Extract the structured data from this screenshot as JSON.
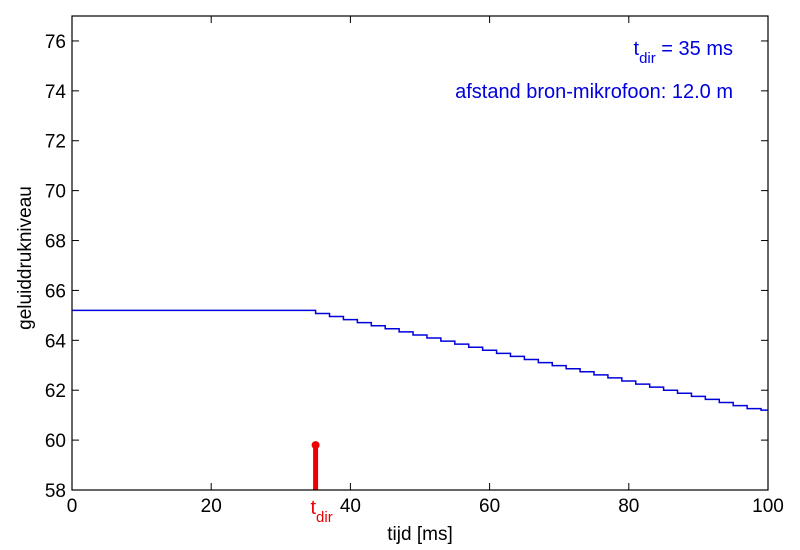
{
  "chart_data": {
    "type": "line",
    "xlabel": "tijd  [ms]",
    "ylabel": "geluiddrukniveau",
    "xlim": [
      0,
      100
    ],
    "ylim": [
      58,
      77
    ],
    "x_ticks": [
      0,
      20,
      40,
      60,
      80,
      100
    ],
    "y_ticks": [
      58,
      60,
      62,
      64,
      66,
      68,
      70,
      72,
      74,
      76
    ],
    "grid": false,
    "colors": {
      "curve": "#0000dd",
      "marker": "#ee0000",
      "annotation": "#0000dd"
    },
    "series": [
      {
        "initial_level": 65.2,
        "step_start_ms": 35,
        "end_level": 61.2,
        "step_ms": 2,
        "x": [
          0,
          35,
          100
        ],
        "y": [
          65.2,
          65.2,
          61.2
        ]
      }
    ],
    "marker": {
      "x": 35,
      "y_top": 59.8,
      "label_main": "t",
      "label_sub": "dir"
    },
    "annotations": [
      {
        "main": "t",
        "sub": "dir",
        "rest": " = 35 ms"
      },
      {
        "text": "afstand bron-mikrofoon: 12.0 m"
      }
    ]
  }
}
